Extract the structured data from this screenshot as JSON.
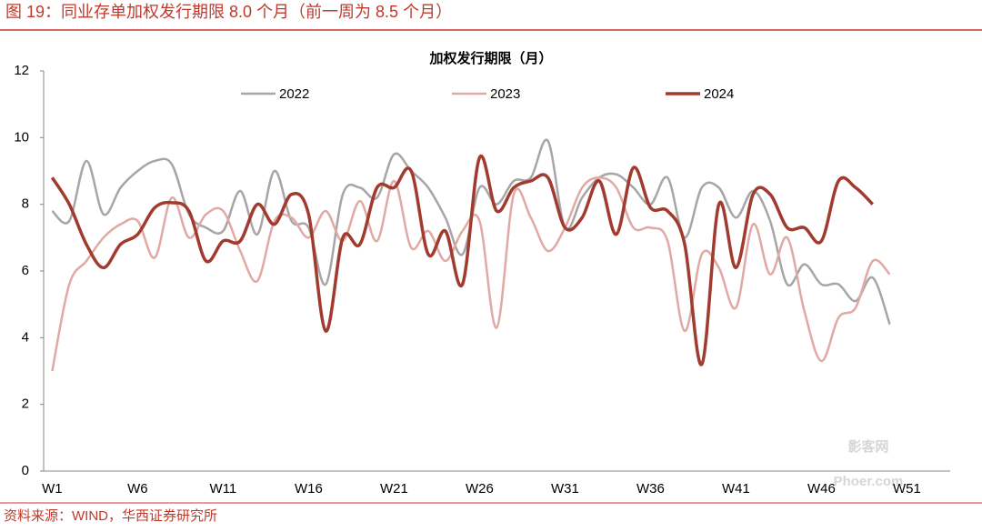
{
  "header": "图 19：同业存单加权发行期限 8.0 个月（前一周为 8.5 个月）",
  "source": "资料来源：WIND，华西证券研究所",
  "watermark": [
    "影客网",
    "Phoer.com"
  ],
  "chart_data": {
    "type": "line",
    "title": "加权发行期限（月）",
    "categories": [
      "W1",
      null,
      null,
      null,
      null,
      "W6",
      null,
      null,
      null,
      null,
      "W11",
      null,
      null,
      null,
      null,
      "W16",
      null,
      null,
      null,
      null,
      "W21",
      null,
      null,
      null,
      null,
      "W26",
      null,
      null,
      null,
      null,
      "W31",
      null,
      null,
      null,
      null,
      "W36",
      null,
      null,
      null,
      null,
      "W41",
      null,
      null,
      null,
      null,
      "W46",
      null,
      null,
      null,
      null,
      "W51",
      null
    ],
    "series": [
      {
        "name": "2022",
        "color": "#a6a6a6",
        "values": [
          7.8,
          7.5,
          9.3,
          7.7,
          8.5,
          9.0,
          9.3,
          9.2,
          7.7,
          7.3,
          7.2,
          8.4,
          7.1,
          9.0,
          7.5,
          7.3,
          5.6,
          8.3,
          8.5,
          8.2,
          9.5,
          9.0,
          8.5,
          7.6,
          6.5,
          8.5,
          8.0,
          8.7,
          8.8,
          9.9,
          7.3,
          8.2,
          8.8,
          8.9,
          8.5,
          8.0,
          8.8,
          7.0,
          8.5,
          8.5,
          7.6,
          8.4,
          7.5,
          5.6,
          6.2,
          5.6,
          5.6,
          5.1,
          5.8,
          4.4,
          null,
          null
        ]
      },
      {
        "name": "2023",
        "color": "#e0a9a4",
        "values": [
          3.0,
          5.6,
          6.3,
          7.0,
          7.4,
          7.5,
          6.4,
          8.2,
          7.0,
          7.7,
          7.8,
          6.6,
          5.7,
          7.5,
          7.6,
          7.0,
          7.8,
          6.9,
          8.1,
          6.9,
          8.7,
          6.7,
          7.2,
          6.3,
          7.2,
          7.5,
          4.3,
          8.3,
          7.6,
          6.6,
          7.3,
          8.5,
          8.8,
          8.5,
          7.3,
          7.3,
          6.9,
          4.2,
          6.5,
          6.1,
          4.9,
          7.4,
          5.9,
          7.0,
          4.8,
          3.3,
          4.6,
          4.9,
          6.3,
          5.9,
          null,
          null
        ]
      },
      {
        "name": "2024",
        "color": "#a23b2f",
        "values": [
          8.8,
          8.0,
          6.8,
          6.1,
          6.8,
          7.1,
          7.9,
          8.05,
          7.8,
          6.3,
          6.9,
          6.9,
          8.0,
          7.4,
          8.3,
          7.7,
          4.2,
          7.0,
          6.8,
          8.5,
          8.5,
          9.0,
          6.5,
          7.2,
          5.6,
          9.4,
          7.8,
          8.5,
          8.7,
          8.8,
          7.3,
          7.6,
          8.7,
          7.1,
          9.1,
          7.9,
          7.8,
          6.8,
          3.2,
          8.0,
          6.1,
          8.3,
          8.3,
          7.3,
          7.3,
          6.9,
          8.7,
          8.5,
          8.0,
          null,
          null,
          null
        ]
      }
    ],
    "ylim": [
      0,
      12
    ],
    "yticks": [
      0,
      2,
      4,
      6,
      8,
      10,
      12
    ],
    "grid": false,
    "legend": "top"
  }
}
